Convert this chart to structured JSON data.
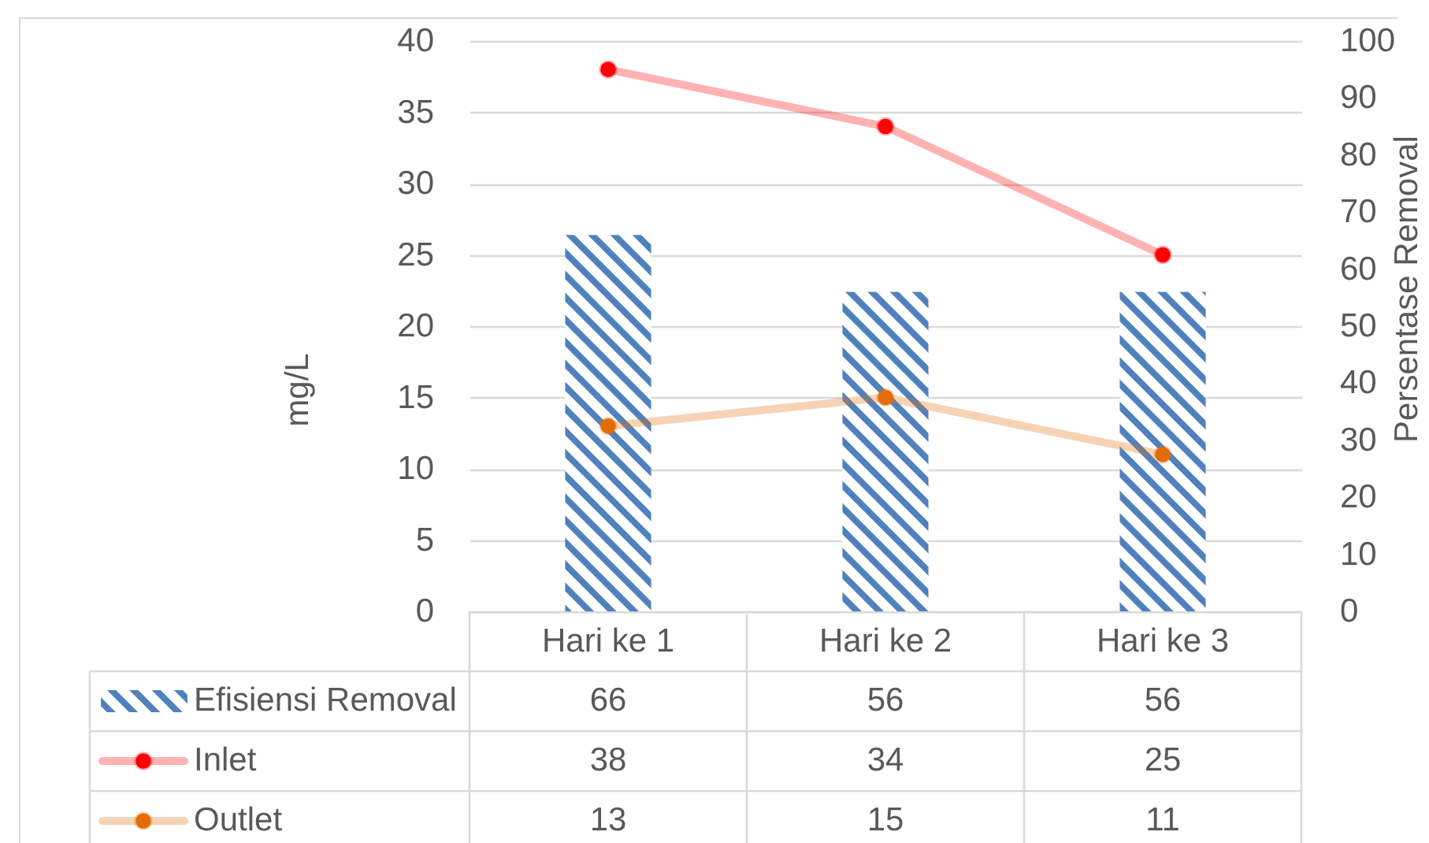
{
  "chart_data": {
    "type": "bar",
    "categories": [
      "Hari ke 1",
      "Hari ke 2",
      "Hari ke 3"
    ],
    "ylabel": "mg/L",
    "y2label": "Persentase Removal",
    "ylim": [
      0,
      40
    ],
    "yticks": [
      0,
      5,
      10,
      15,
      20,
      25,
      30,
      35,
      40
    ],
    "y2lim": [
      0,
      100
    ],
    "y2ticks": [
      0,
      10,
      20,
      30,
      40,
      50,
      60,
      70,
      80,
      90,
      100
    ],
    "grid": "y",
    "legend": "bottom",
    "data_labels": true,
    "marker": "circle",
    "series": [
      {
        "name": "Efisiensi Removal",
        "axis": "y2",
        "color": "#4f81bd",
        "values": [
          66,
          56,
          56
        ]
      },
      {
        "name": "Inlet",
        "type": "line",
        "color": "#ff0000",
        "values": [
          38,
          34,
          25
        ]
      },
      {
        "name": "Outlet",
        "type": "line",
        "color": "#e36c09",
        "values": [
          13,
          15,
          11
        ]
      }
    ]
  }
}
